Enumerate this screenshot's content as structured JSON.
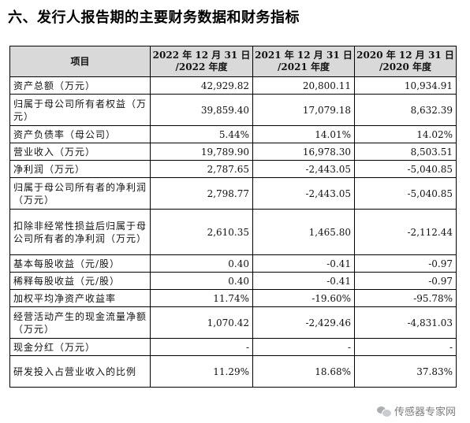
{
  "heading": "六、发行人报告期的主要财务数据和财务指标",
  "table": {
    "item_header": "项目",
    "periods": [
      {
        "line1": "2022 年 12 月 31 日",
        "line2": "/2022 年度"
      },
      {
        "line1": "2021 年 12 月 31 日",
        "line2": "/2021 年度"
      },
      {
        "line1": "2020 年 12 月 31 日",
        "line2": "/2020 年度"
      }
    ],
    "rows": [
      {
        "label": "资产总额（万元）",
        "values": [
          "42,929.82",
          "20,800.11",
          "10,934.91"
        ]
      },
      {
        "label": "归属于母公司所有者权益（万元）",
        "values": [
          "39,859.40",
          "17,079.18",
          "8,632.39"
        ]
      },
      {
        "label": "资产负债率（母公司）",
        "values": [
          "5.44%",
          "14.01%",
          "14.02%"
        ]
      },
      {
        "label": "营业收入（万元）",
        "values": [
          "19,789.90",
          "16,978.30",
          "8,503.51"
        ]
      },
      {
        "label": "净利润（万元）",
        "values": [
          "2,787.65",
          "-2,443.05",
          "-5,040.85"
        ]
      },
      {
        "label": "归属于母公司所有者的净利润（万元）",
        "values": [
          "2,798.77",
          "-2,443.05",
          "-5,040.85"
        ]
      },
      {
        "label": "扣除非经常性损益后归属于母公司所有者的净利润（万元）",
        "values": [
          "2,610.35",
          "1,465.80",
          "-2,112.44"
        ]
      },
      {
        "label": "基本每股收益（元/股）",
        "values": [
          "0.40",
          "-0.41",
          "-0.97"
        ]
      },
      {
        "label": "稀释每股收益（元/股）",
        "values": [
          "0.40",
          "-0.41",
          "-0.97"
        ]
      },
      {
        "label": "加权平均净资产收益率",
        "values": [
          "11.74%",
          "-19.60%",
          "-95.78%"
        ]
      },
      {
        "label": "经营活动产生的现金流量净额（万元）",
        "values": [
          "1,070.42",
          "-2,429.46",
          "-4,831.03"
        ]
      },
      {
        "label": "现金分红（万元）",
        "values": [
          "-",
          "-",
          "-"
        ]
      },
      {
        "label": "研发投入占营业收入的比例",
        "values": [
          "11.29%",
          "18.68%",
          "37.83%"
        ]
      }
    ]
  },
  "watermark": {
    "text": "传感器专家网",
    "icon": "wechat-icon"
  }
}
